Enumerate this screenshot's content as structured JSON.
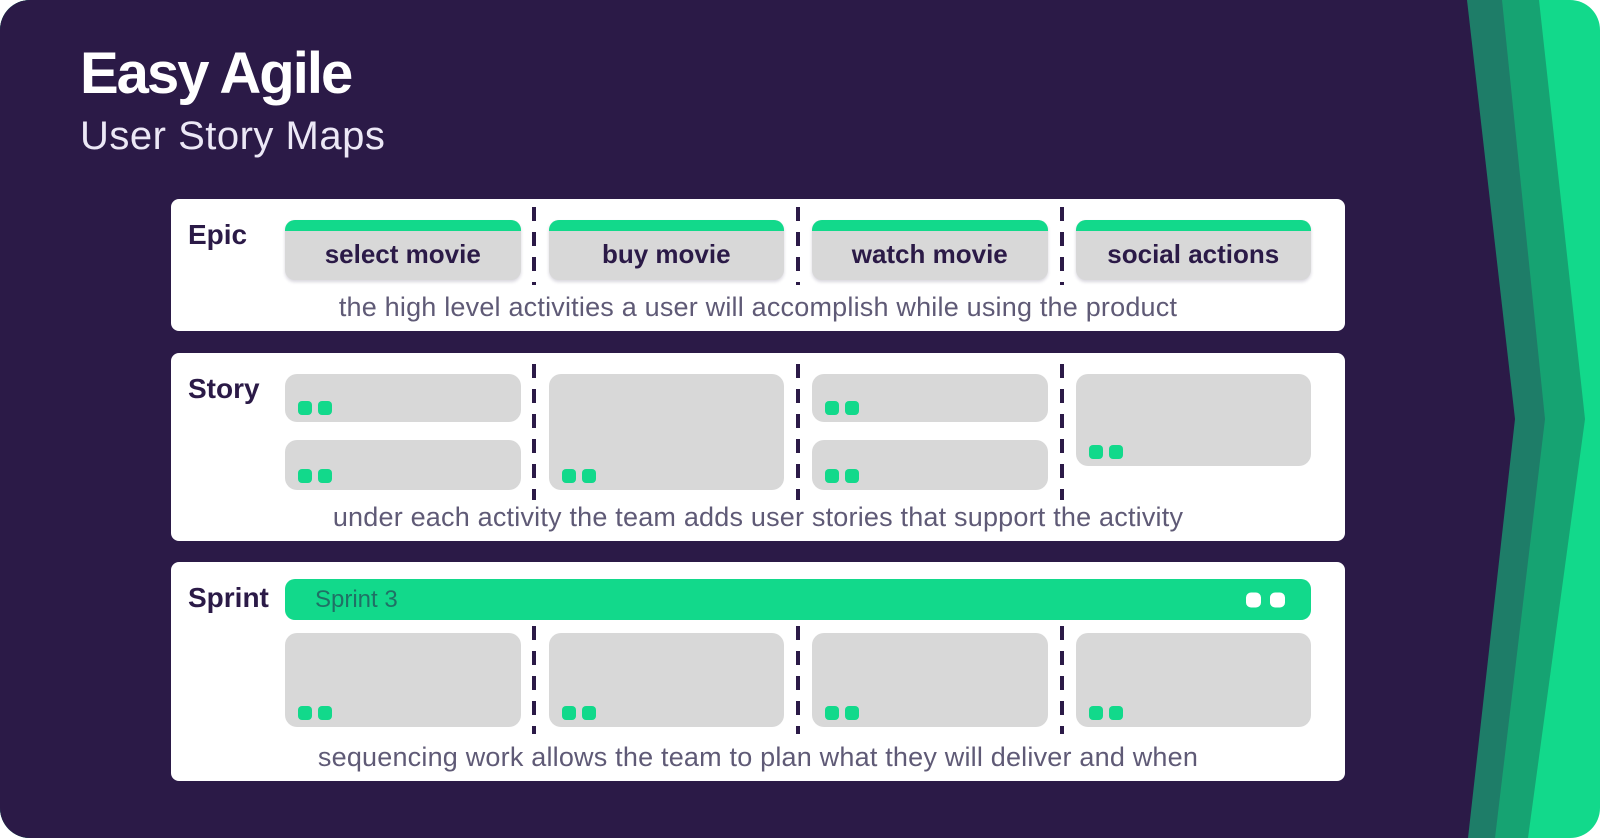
{
  "brand": {
    "title": "Easy Agile",
    "subtitle": "User Story Maps"
  },
  "colors": {
    "background": "#2b1a47",
    "accent_green": "#12d98b",
    "stripe_teal": "#1e7d68",
    "stripe_mid_green": "#16a372",
    "card_gray": "#d8d8d8",
    "caption_text": "#5f5a76"
  },
  "epic_row": {
    "label": "Epic",
    "cards": [
      "select movie",
      "buy movie",
      "watch movie",
      "social actions"
    ],
    "caption": "the high level activities a user will accomplish while using the product"
  },
  "story_row": {
    "label": "Story",
    "caption": "under each activity the team adds user stories that support the activity"
  },
  "sprint_row": {
    "label": "Sprint",
    "sprint_bar_label": "Sprint 3",
    "caption": "sequencing work allows the team to plan what they will deliver and when"
  }
}
